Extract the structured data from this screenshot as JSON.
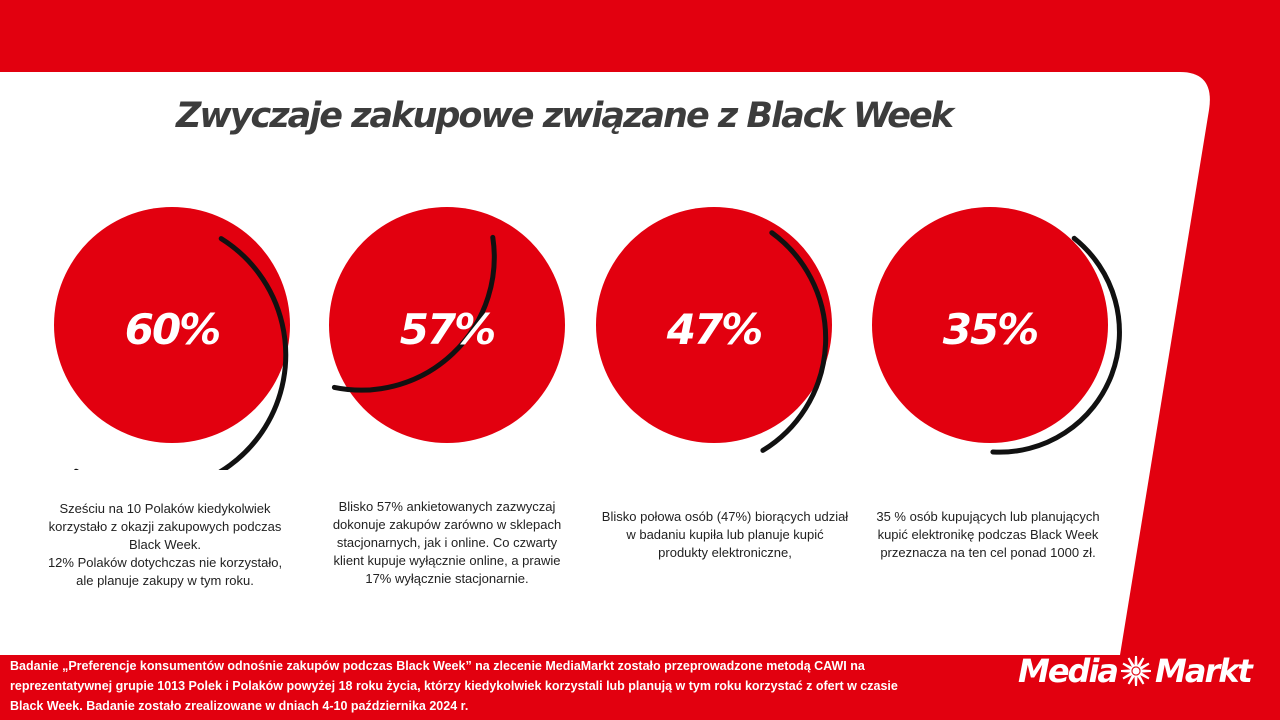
{
  "title": "Zwyczaje zakupowe związane z Black Week",
  "accent_color": "#e2000f",
  "arc_color": "#111111",
  "stats": [
    {
      "value": "60%",
      "fraction": 0.6,
      "lines": [
        "Sześciu na 10 Polaków kiedykolwiek",
        "korzystało z okazji zakupowych podczas",
        "Black Week.",
        "12% Polaków dotychczas nie korzystało,",
        "ale planuje zakupy w tym roku."
      ]
    },
    {
      "value": "57%",
      "fraction": 0.57,
      "lines": [
        "Blisko 57% ankietowanych zazwyczaj",
        "dokonuje zakupów zarówno w sklepach",
        "stacjonarnych, jak i online. Co czwarty",
        "klient kupuje wyłącznie online, a prawie",
        "17% wyłącznie stacjonarnie."
      ]
    },
    {
      "value": "47%",
      "fraction": 0.47,
      "lines": [
        "Blisko połowa osób (47%) biorących udział",
        "w badaniu kupiła lub planuje kupić",
        "produkty elektroniczne,"
      ]
    },
    {
      "value": "35%",
      "fraction": 0.35,
      "lines": [
        "35 % osób kupujących lub planujących",
        "kupić elektronikę podczas Black Week",
        "przeznacza  na ten cel ponad 1000 zł."
      ]
    }
  ],
  "footer": {
    "lines": [
      "Badanie „Preferencje konsumentów odnośnie zakupów podczas Black Week” na zlecenie MediaMarkt zostało przeprowadzone metodą CAWI na",
      "reprezentatywnej  grupie 1013 Polek i Polaków powyżej 18 roku życia, którzy kiedykolwiek korzystali lub planują w tym roku korzystać z ofert w czasie",
      "Black Week. Badanie zostało zrealizowane w dniach 4-10 października 2024 r."
    ]
  },
  "logo": {
    "part1": "Media",
    "part2": "Markt",
    "icon": "mediamarkt-star-logo-icon"
  }
}
